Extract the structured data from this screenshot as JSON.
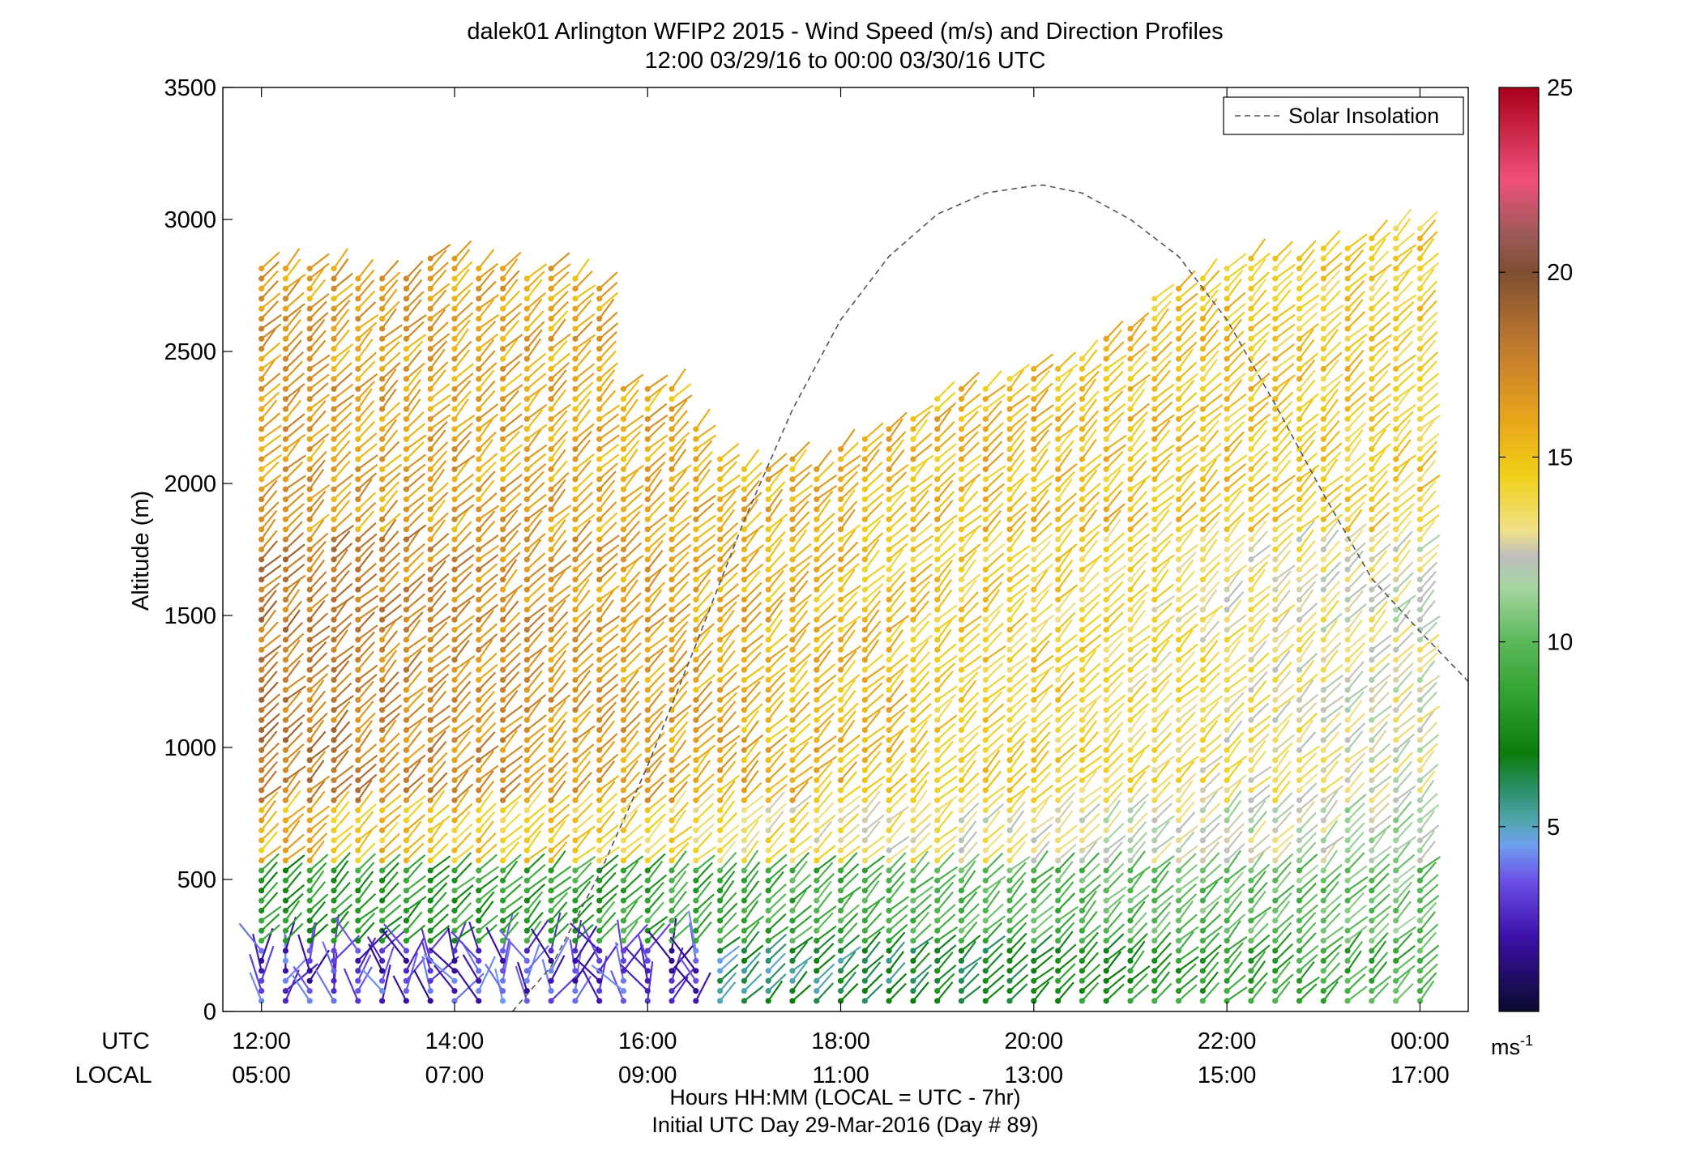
{
  "chart_data": {
    "type": "scatter",
    "subtype": "wind barb profile",
    "title": "dalek01 Arlington WFIP2 2015 - Wind Speed (m/s) and Direction Profiles",
    "subtitle": "12:00 03/29/16 to 00:00 03/30/16  UTC",
    "ylabel": "Altitude (m)",
    "xlabel": "Hours HH:MM  (LOCAL = UTC - 7hr)",
    "xlabel2": "Initial UTC Day 29-Mar-2016 (Day # 89)",
    "row_label_utc": "UTC",
    "row_label_local": "LOCAL",
    "ylim": [
      0,
      3500
    ],
    "yticks": [
      "0",
      "500",
      "1000",
      "1500",
      "2000",
      "2500",
      "3000",
      "3500"
    ],
    "ytick_values": [
      0,
      500,
      1000,
      1500,
      2000,
      2500,
      3000,
      3500
    ],
    "xlim_hours": [
      11.6,
      24.5
    ],
    "xtick_values": [
      12,
      14,
      16,
      18,
      20,
      22,
      24
    ],
    "xticks_utc": [
      "12:00",
      "14:00",
      "16:00",
      "18:00",
      "20:00",
      "22:00",
      "00:00"
    ],
    "xticks_local": [
      "05:00",
      "07:00",
      "09:00",
      "11:00",
      "13:00",
      "15:00",
      "17:00"
    ],
    "legend": {
      "entries": [
        "Solar Insolation"
      ],
      "placement": "top-right",
      "line_color": "#555555"
    },
    "solar_insolation": {
      "description_values": "dashed curve rising from ~16:00 UTC, peak near 3130 m at ~20:05 UTC, falling to ~1250 m at 24.5",
      "hours": [
        14.6,
        15.0,
        15.5,
        16.0,
        16.5,
        17.0,
        17.5,
        18.0,
        18.5,
        19.0,
        19.5,
        20.0,
        20.1,
        20.5,
        21.0,
        21.5,
        22.0,
        22.5,
        23.0,
        23.5,
        24.0,
        24.5
      ],
      "altitude": [
        0,
        170,
        520,
        930,
        1390,
        1860,
        2280,
        2620,
        2860,
        3020,
        3100,
        3128,
        3130,
        3100,
        3000,
        2860,
        2620,
        2300,
        1960,
        1640,
        1440,
        1250
      ]
    },
    "colorbar": {
      "label": "ms-1",
      "unit_base": "ms",
      "unit_exp": "-1",
      "ticks": [
        "5",
        "10",
        "15",
        "20",
        "25"
      ],
      "tick_values": [
        5,
        10,
        15,
        20,
        25
      ],
      "range": [
        0,
        25
      ],
      "stops": [
        {
          "v": 0,
          "c": "#0a0a2e"
        },
        {
          "v": 2,
          "c": "#3b10a8"
        },
        {
          "v": 3.5,
          "c": "#6a4ee6"
        },
        {
          "v": 4.5,
          "c": "#6f9ff0"
        },
        {
          "v": 5.2,
          "c": "#4fa6aa"
        },
        {
          "v": 6.0,
          "c": "#2b8f6a"
        },
        {
          "v": 7.0,
          "c": "#0a7d0a"
        },
        {
          "v": 8.5,
          "c": "#2fa12f"
        },
        {
          "v": 10,
          "c": "#5ab85a"
        },
        {
          "v": 11.5,
          "c": "#a7d6a2"
        },
        {
          "v": 12.3,
          "c": "#bdbdbd"
        },
        {
          "v": 13,
          "c": "#f0e08a"
        },
        {
          "v": 14.5,
          "c": "#f0d018"
        },
        {
          "v": 16,
          "c": "#e8a51a"
        },
        {
          "v": 18,
          "c": "#c07a30"
        },
        {
          "v": 20,
          "c": "#7e4e32"
        },
        {
          "v": 21,
          "c": "#9a5a58"
        },
        {
          "v": 22.5,
          "c": "#f0507a"
        },
        {
          "v": 25,
          "c": "#a8001a"
        }
      ]
    },
    "profiles": {
      "time_start_hour": 12.0,
      "time_step_hour": 0.25,
      "count": 49,
      "first_gate_m": 40,
      "gate_step_m": 38,
      "top_altitude_m": [
        2840,
        2840,
        2840,
        2840,
        2800,
        2800,
        2800,
        2860,
        2860,
        2820,
        2820,
        2800,
        2820,
        2780,
        2760,
        2360,
        2360,
        2360,
        2240,
        2120,
        2080,
        2080,
        2120,
        2080,
        2160,
        2200,
        2240,
        2280,
        2320,
        2360,
        2380,
        2420,
        2440,
        2460,
        2500,
        2560,
        2620,
        2720,
        2760,
        2800,
        2840,
        2860,
        2880,
        2860,
        2900,
        2920,
        2960,
        2980,
        3000
      ],
      "segments_m": [
        {
          "from": 0,
          "to": 250,
          "early_speed": 3.2,
          "late_speed": 9.5
        },
        {
          "from": 250,
          "to": 550,
          "early_speed": 8.0,
          "late_speed": 10.5
        },
        {
          "from": 550,
          "to": 800,
          "early_speed": 15.5,
          "late_speed": 11.5
        },
        {
          "from": 800,
          "to": 1800,
          "early_speed": 18.0,
          "late_speed": 12.5
        },
        {
          "from": 1800,
          "to": 3100,
          "early_speed": 16.5,
          "late_speed": 14.5
        }
      ],
      "typical_direction_deg": 225
    }
  }
}
